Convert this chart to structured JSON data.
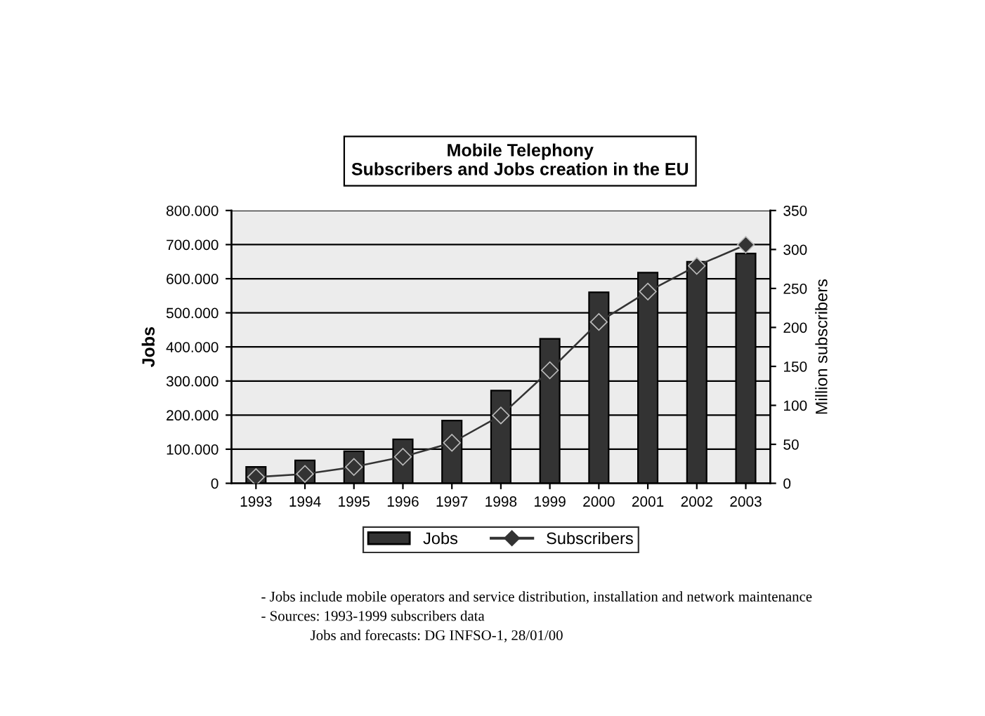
{
  "chart_data": {
    "type": "bar",
    "title": "Mobile Telephony\nSubscribers and Jobs creation in the EU",
    "categories": [
      "1993",
      "1994",
      "1995",
      "1996",
      "1997",
      "1998",
      "1999",
      "2000",
      "2001",
      "2002",
      "2003"
    ],
    "series": [
      {
        "name": "Jobs",
        "color": "#333333",
        "values": [
          48000,
          67000,
          94000,
          129000,
          184000,
          272000,
          424000,
          560000,
          618000,
          650000,
          674000
        ]
      },
      {
        "name": "Subscribers",
        "type": "line",
        "axis": "y2",
        "color": "#333333",
        "marker": "diamond",
        "line_style": "solid",
        "values": [
          8,
          12,
          21,
          34,
          52,
          87,
          145,
          207,
          246,
          279,
          306
        ]
      }
    ],
    "ylabel": "Jobs",
    "y2label": "Million subscribers",
    "ylim": [
      0,
      800000
    ],
    "yticks": [
      0,
      {
        "value": 100000,
        "label": "100.000"
      },
      {
        "value": 200000,
        "label": "200.000"
      },
      {
        "value": 300000,
        "label": "300.000"
      },
      {
        "value": 400000,
        "label": "400.000"
      },
      {
        "value": 500000,
        "label": "500.000"
      },
      {
        "value": 600000,
        "label": "600.000"
      },
      {
        "value": 700000,
        "label": "700.000"
      },
      {
        "value": 800000,
        "label": "800.000"
      }
    ],
    "y2lim": [
      0,
      350
    ],
    "y2ticks": [
      0,
      50,
      100,
      150,
      200,
      250,
      300,
      350
    ],
    "grid": "y",
    "legend": "bottom",
    "annotations": [
      "- Jobs include mobile operators and service distribution, installation and network maintenance",
      "- Sources: 1993-1999 subscribers data",
      "Jobs and forecasts: DG INFSO-1, 28/01/00"
    ]
  }
}
